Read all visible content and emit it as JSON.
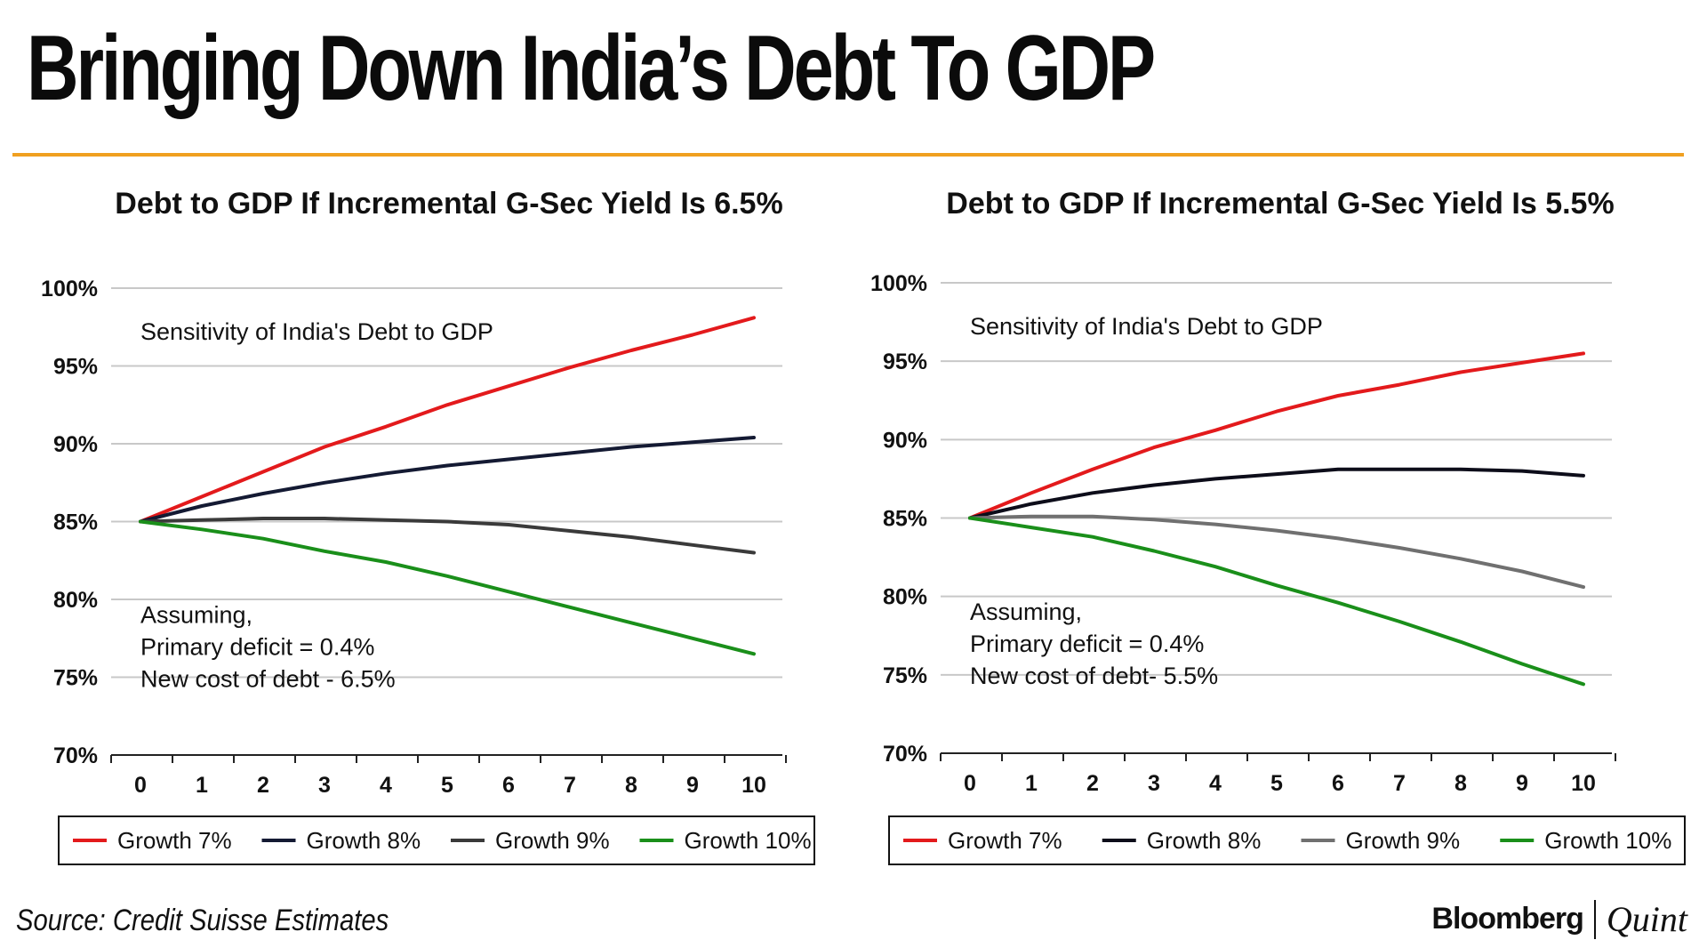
{
  "headline": "Bringing Down India’s Debt To GDP",
  "source": "Source: Credit Suisse Estimates",
  "brand": {
    "primary": "Bloomberg",
    "secondary": "Quint"
  },
  "colors": {
    "accent_rule": "#f0a020"
  },
  "chart_data": [
    {
      "type": "line",
      "title": "Debt to GDP If Incremental G-Sec Yield Is 6.5%",
      "subtitle": "Sensitivity of India's Debt to GDP",
      "annotation": [
        "Assuming,",
        "Primary deficit = 0.4%",
        "New cost of debt - 6.5%"
      ],
      "x": [
        0,
        1,
        2,
        3,
        4,
        5,
        6,
        7,
        8,
        9,
        10
      ],
      "ylim": [
        70,
        100
      ],
      "yticks": [
        70,
        75,
        80,
        85,
        90,
        95,
        100
      ],
      "ytick_labels": [
        "70%",
        "75%",
        "80%",
        "85%",
        "90%",
        "95%",
        "100%"
      ],
      "grid": true,
      "legend": "bottom",
      "series": [
        {
          "name": "Growth 7%",
          "color": "#e31a1c",
          "values": [
            85.0,
            86.6,
            88.2,
            89.8,
            91.1,
            92.5,
            93.7,
            94.9,
            96.0,
            97.0,
            98.1
          ]
        },
        {
          "name": "Growth 8%",
          "color": "#141a33",
          "values": [
            85.0,
            86.0,
            86.8,
            87.5,
            88.1,
            88.6,
            89.0,
            89.4,
            89.8,
            90.1,
            90.4
          ]
        },
        {
          "name": "Growth 9%",
          "color": "#3a3a3a",
          "values": [
            85.0,
            85.1,
            85.2,
            85.2,
            85.1,
            85.0,
            84.8,
            84.4,
            84.0,
            83.5,
            83.0
          ]
        },
        {
          "name": "Growth 10%",
          "color": "#1a8f1a",
          "values": [
            85.0,
            84.5,
            83.9,
            83.1,
            82.4,
            81.5,
            80.5,
            79.5,
            78.5,
            77.5,
            76.5
          ]
        }
      ]
    },
    {
      "type": "line",
      "title": "Debt to GDP If Incremental G-Sec Yield Is 5.5%",
      "subtitle": "Sensitivity of India's Debt to GDP",
      "annotation": [
        "Assuming,",
        "Primary deficit = 0.4%",
        "New cost of debt- 5.5%"
      ],
      "x": [
        0,
        1,
        2,
        3,
        4,
        5,
        6,
        7,
        8,
        9,
        10
      ],
      "ylim": [
        70,
        100
      ],
      "yticks": [
        70,
        75,
        80,
        85,
        90,
        95,
        100
      ],
      "ytick_labels": [
        "70%",
        "75%",
        "80%",
        "85%",
        "90%",
        "95%",
        "100%"
      ],
      "grid": true,
      "legend": "bottom",
      "series": [
        {
          "name": "Growth 7%",
          "color": "#e31a1c",
          "values": [
            85.0,
            86.6,
            88.1,
            89.5,
            90.6,
            91.8,
            92.8,
            93.5,
            94.3,
            94.9,
            95.5
          ]
        },
        {
          "name": "Growth 8%",
          "color": "#0d0d1a",
          "values": [
            85.0,
            85.9,
            86.6,
            87.1,
            87.5,
            87.8,
            88.1,
            88.1,
            88.1,
            88.0,
            87.7
          ]
        },
        {
          "name": "Growth 9%",
          "color": "#707070",
          "values": [
            85.0,
            85.1,
            85.1,
            84.9,
            84.6,
            84.2,
            83.7,
            83.1,
            82.4,
            81.6,
            80.6
          ]
        },
        {
          "name": "Growth 10%",
          "color": "#1a8f1a",
          "values": [
            85.0,
            84.4,
            83.8,
            82.9,
            81.9,
            80.7,
            79.6,
            78.4,
            77.1,
            75.7,
            74.4
          ]
        }
      ]
    }
  ]
}
